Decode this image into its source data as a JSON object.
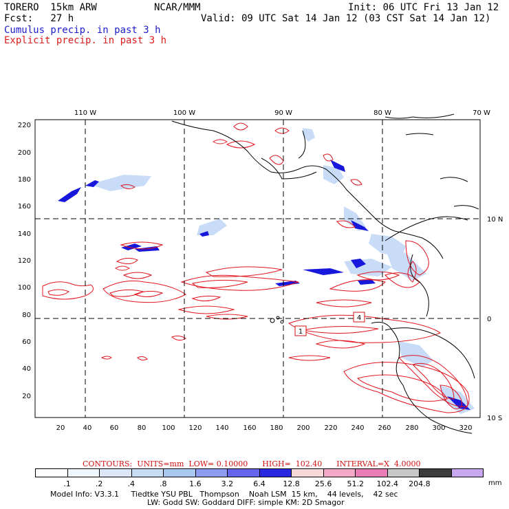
{
  "header": {
    "model": "TORERO  15km ARW",
    "center": "NCAR/MMM",
    "init": "Init: 06 UTC Fri 13 Jan 12",
    "fcst": "Fcst:   27 h",
    "valid": "Valid: 09 UTC Sat 14 Jan 12 (03 CST Sat 14 Jan 12)",
    "cumulus": "Cumulus precip. in past 3 h",
    "explicit": "Explicit precip. in past 3 h"
  },
  "map": {
    "lon_labels": [
      "110 W",
      "100 W",
      "90 W",
      "80 W",
      "70 W"
    ],
    "lat_labels": [
      "10 N",
      "0",
      "10 S"
    ],
    "y_ticks": [
      "220",
      "200",
      "180",
      "160",
      "140",
      "120",
      "100",
      "80",
      "60",
      "40",
      "20"
    ],
    "x_ticks": [
      "20",
      "40",
      "60",
      "80",
      "100",
      "120",
      "140",
      "160",
      "180",
      "200",
      "220",
      "240",
      "260",
      "280",
      "300",
      "320"
    ],
    "box_labels": [
      "1",
      "4"
    ],
    "colors": {
      "explicit": "#e0141e",
      "cumulus_dark": "#1010e0",
      "cumulus_light": "#c8dcf8",
      "coast": "#000000"
    }
  },
  "contours": {
    "label": "CONTOURS:",
    "units": "UNITS=mm",
    "low": "LOW= 0.10000",
    "high": "HIGH=  102.40",
    "interval": "INTERVAL=X  4.0000"
  },
  "colorbar": {
    "colors": [
      "#ffffff",
      "#eef6fc",
      "#dce8f8",
      "#c8dcf4",
      "#a8c8f0",
      "#8c9cf0",
      "#6464ec",
      "#2828e0",
      "#f8d8d8",
      "#f4a8c8",
      "#e87cb4",
      "#c8c8c8",
      "#3c3c3c",
      "#c8a8f0"
    ],
    "labels": [
      ".1",
      ".2",
      ".4",
      ".8",
      "1.6",
      "3.2",
      "6.4",
      "12.8",
      "25.6",
      "51.2",
      "102.4",
      "204.8"
    ],
    "unit": "mm"
  },
  "info": {
    "line1": "Model Info: V3.3.1     Tiedtke YSU PBL   Thompson    Noah LSM  15 km,    44 levels,    42 sec",
    "line2": "LW: Godd SW: Goddard DIFF: simple KM: 2D Smagor"
  }
}
